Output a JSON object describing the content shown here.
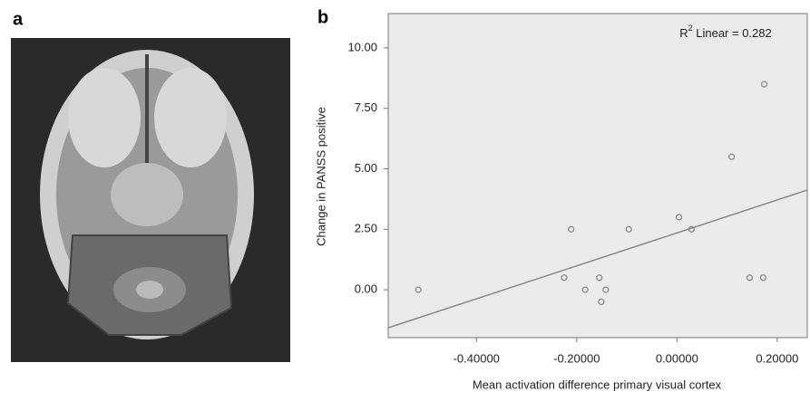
{
  "panel_labels": [
    "a",
    "b"
  ],
  "chart_data": {
    "type": "scatter",
    "annotation": {
      "base": "R",
      "sup": "2",
      "rest": " Linear = 0.282"
    },
    "x_label": "Mean activation difference primary visual cortex",
    "y_label": "Change in PANSS positive",
    "x": [
      -0.516,
      -0.225,
      -0.211,
      -0.183,
      -0.155,
      -0.151,
      -0.142,
      -0.096,
      0.004,
      0.029,
      0.109,
      0.145,
      0.172,
      0.174
    ],
    "y": [
      0,
      0.5,
      2.5,
      0,
      0.5,
      -0.5,
      0,
      2.5,
      3.0,
      2.5,
      5.5,
      0.5,
      0.5,
      8.5
    ],
    "color": "#8a8a8a",
    "fit_line": {
      "slope": 6.81,
      "intercept": 2.35,
      "color": "#8a8a8a"
    },
    "xlim": [
      -0.576,
      0.26
    ],
    "ylim": [
      -1.98,
      11.42
    ],
    "xticks": [
      {
        "value": -0.4,
        "label": "-0.40000"
      },
      {
        "value": -0.2,
        "label": "-0.20000"
      },
      {
        "value": 0,
        "label": "0.00000"
      },
      {
        "value": 0.2,
        "label": "0.20000"
      }
    ],
    "yticks": [
      {
        "value": 0,
        "label": "0.00"
      },
      {
        "value": 2.5,
        "label": "2.50"
      },
      {
        "value": 5,
        "label": "5.00"
      },
      {
        "value": 7.5,
        "label": "7.50"
      },
      {
        "value": 10,
        "label": "10.00"
      }
    ],
    "background": "#ebebeb"
  }
}
